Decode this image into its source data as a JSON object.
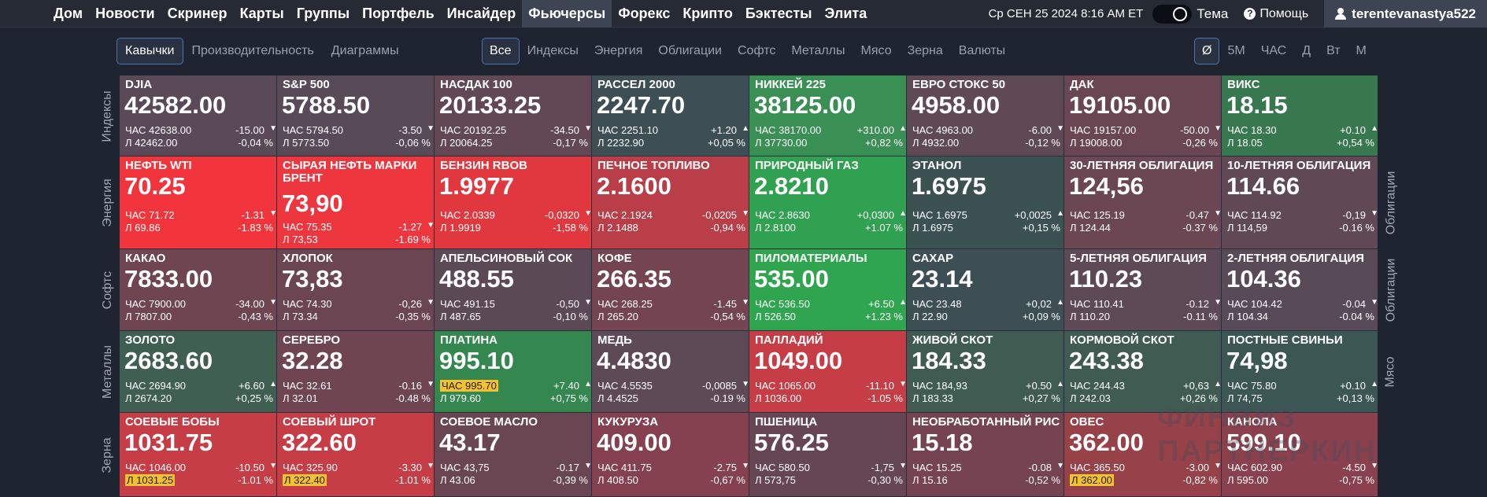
{
  "nav": {
    "items": [
      "Дом",
      "Новости",
      "Скринер",
      "Карты",
      "Группы",
      "Портфель",
      "Инсайдер",
      "Фьючерсы",
      "Форекс",
      "Крипто",
      "Бэктесты",
      "Элита"
    ],
    "active_index": 7,
    "datetime": "Ср СЕН 25 2024 8:16 AM ET",
    "theme_label": "Тема",
    "help_label": "Помощь",
    "username": "terentevanastya522"
  },
  "toolbar": {
    "views": [
      "Кавычки",
      "Производительность",
      "Диаграммы"
    ],
    "active_view": 0,
    "categories": [
      "Все",
      "Индексы",
      "Энергия",
      "Облигации",
      "Софтс",
      "Металлы",
      "Мясо",
      "Зерна",
      "Валюты"
    ],
    "active_category": 0,
    "timeframes": [
      "Ø",
      "5М",
      "ЧАС",
      "Д",
      "Вт",
      "М"
    ],
    "active_timeframe": 0
  },
  "side_labels": {
    "left": [
      "Индексы",
      "Энергия",
      "Софтс",
      "Металлы",
      "Зерна"
    ],
    "right": [
      "Облигации",
      "Облигации",
      "Мясо"
    ]
  },
  "watermark": "ФИНВИЗ ПАРТНЕРКИН",
  "tiles": [
    {
      "name": "DJIA",
      "price": "42582.00",
      "h": "ЧАС 42638.00",
      "chg": "-15.00",
      "l": "Л 42462.00",
      "pct": "-0,04 %",
      "dir": "down",
      "color": "#5a4a58"
    },
    {
      "name": "S&P 500",
      "price": "5788.50",
      "h": "ЧАС 5794.50",
      "chg": "-3.50",
      "l": "Л 5773.50",
      "pct": "-0,06 %",
      "dir": "down",
      "color": "#594a57"
    },
    {
      "name": "НАСДАК 100",
      "price": "20133.25",
      "h": "ЧАС 20192.25",
      "chg": "-34.50",
      "l": "Л 20064.25",
      "pct": "-0,17 %",
      "dir": "down",
      "color": "#614854"
    },
    {
      "name": "РАССЕЛ 2000",
      "price": "2247.70",
      "h": "ЧАС 2251.10",
      "chg": "+1.20",
      "l": "Л 2232.90",
      "pct": "+0,05 %",
      "dir": "up",
      "color": "#3d4f55"
    },
    {
      "name": "НИККЕЙ 225",
      "price": "38125.00",
      "h": "ЧАС 38170.00",
      "chg": "+310.00",
      "l": "Л 37730.00",
      "pct": "+0,82 %",
      "dir": "up",
      "color": "#3a8f55"
    },
    {
      "name": "ЕВРО СТОКС 50",
      "price": "4958.00",
      "h": "ЧАС 4963.00",
      "chg": "-6.00",
      "l": "Л 4932.00",
      "pct": "-0,12 %",
      "dir": "down",
      "color": "#5e4955"
    },
    {
      "name": "ДАК",
      "price": "19105.00",
      "h": "ЧАС 19157.00",
      "chg": "-50.00",
      "l": "Л 19008.00",
      "pct": "-0,26 %",
      "dir": "down",
      "color": "#6a4653"
    },
    {
      "name": "ВИКС",
      "price": "18.15",
      "h": "ЧАС 18.30",
      "chg": "+0.10",
      "l": "Л 18.05",
      "pct": "+0,54 %",
      "dir": "up",
      "color": "#38784e"
    },
    {
      "name": "НЕФТЬ WTI",
      "price": "70.25",
      "h": "ЧАС 71.72",
      "chg": "-1.31",
      "l": "Л 69.86",
      "pct": "-1.83 %",
      "dir": "down",
      "color": "#f2353c"
    },
    {
      "name": "СЫРАЯ НЕФТЬ МАРКИ БРЕНТ",
      "price": "73,90",
      "h": "ЧАС 75.35",
      "chg": "-1.27",
      "l": "Л 73,53",
      "pct": "-1.69 %",
      "dir": "down",
      "color": "#ee363e",
      "pct2": true
    },
    {
      "name": "БЕНЗИН RBOB",
      "price": "1.9977",
      "h": "ЧАС 2.0339",
      "chg": "-0,0320",
      "l": "Л 1.9919",
      "pct": "-1,58 %",
      "dir": "down",
      "color": "#e1383f"
    },
    {
      "name": "ПЕЧНОЕ ТОПЛИВО",
      "price": "2.1600",
      "h": "ЧАС 2.1924",
      "chg": "-0,0205",
      "l": "Л 2.1488",
      "pct": "-0,94 %",
      "dir": "down",
      "color": "#b93e47"
    },
    {
      "name": "ПРИРОДНЫЙ ГАЗ",
      "price": "2.8210",
      "h": "ЧАС 2.8630",
      "chg": "+0,0300",
      "l": "Л 2.8100",
      "pct": "+1.07 %",
      "dir": "up",
      "color": "#2fa150"
    },
    {
      "name": "ЭТАНОЛ",
      "price": "1.6975",
      "h": "ЧАС 1.6975",
      "chg": "+0,0025",
      "l": "Л 1.6975",
      "pct": "+0,15 %",
      "dir": "up",
      "color": "#3c5252"
    },
    {
      "name": "30-ЛЕТНЯЯ ОБЛИГАЦИЯ",
      "price": "124,56",
      "h": "ЧАС 125.19",
      "chg": "-0.47",
      "l": "Л 124.44",
      "pct": "-0.37 %",
      "dir": "down",
      "color": "#6b4653"
    },
    {
      "name": "10-ЛЕТНЯЯ ОБЛИГАЦИЯ",
      "price": "114.66",
      "h": "ЧАС 114.92",
      "chg": "-0,19",
      "l": "Л 114,59",
      "pct": "-0.16 %",
      "dir": "down",
      "color": "#604955"
    },
    {
      "name": "КАКАО",
      "price": "7833.00",
      "h": "ЧАС 7900.00",
      "chg": "-34.00",
      "l": "Л 7807.00",
      "pct": "-0,43 %",
      "dir": "down",
      "color": "#6f4552"
    },
    {
      "name": "ХЛОПОК",
      "price": "73,83",
      "h": "ЧАС 74.30",
      "chg": "-0,26",
      "l": "Л 73.34",
      "pct": "-0,35 %",
      "dir": "down",
      "color": "#6c4552"
    },
    {
      "name": "АПЕЛЬСИНОВЫЙ СОК",
      "price": "488.55",
      "h": "ЧАС 491.15",
      "chg": "-0,50",
      "l": "Л 487.65",
      "pct": "-0,10 %",
      "dir": "down",
      "color": "#5c4956"
    },
    {
      "name": "КОФЕ",
      "price": "266.35",
      "h": "ЧАС 268.25",
      "chg": "-1.45",
      "l": "Л 265.20",
      "pct": "-0,54 %",
      "dir": "down",
      "color": "#744451"
    },
    {
      "name": "ПИЛОМАТЕРИАЛЫ",
      "price": "535.00",
      "h": "ЧАС 536.50",
      "chg": "+6.50",
      "l": "Л 526.50",
      "pct": "+1.23 %",
      "dir": "up",
      "color": "#2fa550"
    },
    {
      "name": "САХАР",
      "price": "23.14",
      "h": "ЧАС 23.48",
      "chg": "+0,02",
      "l": "Л 22.90",
      "pct": "+0,09 %",
      "dir": "up",
      "color": "#3d4f55"
    },
    {
      "name": "5-ЛЕТНЯЯ ОБЛИГАЦИЯ",
      "price": "110.23",
      "h": "ЧАС 110.41",
      "chg": "-0.12",
      "l": "Л 110.20",
      "pct": "-0.11 %",
      "dir": "down",
      "color": "#5e4956"
    },
    {
      "name": "2-ЛЕТНЯЯ ОБЛИГАЦИЯ",
      "price": "104.36",
      "h": "ЧАС 104.42",
      "chg": "-0.04",
      "l": "Л 104.34",
      "pct": "-0.04 %",
      "dir": "down",
      "color": "#584a57"
    },
    {
      "name": "ЗОЛОТО",
      "price": "2683.60",
      "h": "ЧАС 2694.90",
      "chg": "+6.60",
      "l": "Л 2674.20",
      "pct": "+0,25 %",
      "dir": "up",
      "color": "#3f5f52"
    },
    {
      "name": "СЕРЕБРО",
      "price": "32.28",
      "h": "ЧАС 32.61",
      "chg": "-0.16",
      "l": "Л 32.01",
      "pct": "-0.48 %",
      "dir": "down",
      "color": "#6f4552"
    },
    {
      "name": "ПЛАТИНА",
      "price": "995.10",
      "h": "ЧАС 995.70",
      "chg": "+7.40",
      "l": "Л 979.60",
      "pct": "+0,75 %",
      "dir": "up",
      "color": "#34874f",
      "hl_h": true
    },
    {
      "name": "МЕДЬ",
      "price": "4.4830",
      "h": "ЧАС 4.5535",
      "chg": "-0,0085",
      "l": "Л 4.4525",
      "pct": "-0.19 %",
      "dir": "down",
      "color": "#5e4956"
    },
    {
      "name": "ПАЛЛАДИЙ",
      "price": "1049.00",
      "h": "ЧАС 1065.00",
      "chg": "-11.10",
      "l": "Л 1036.00",
      "pct": "-1.05 %",
      "dir": "down",
      "color": "#c63d45"
    },
    {
      "name": "ЖИВОЙ СКОТ",
      "price": "184.33",
      "h": "ЧАС 184,93",
      "chg": "+0.50",
      "l": "Л 183.33",
      "pct": "+0,27 %",
      "dir": "up",
      "color": "#3f5b52"
    },
    {
      "name": "КОРМОВОЙ СКОТ",
      "price": "243.38",
      "h": "ЧАС 244.43",
      "chg": "+0,63",
      "l": "Л 242.03",
      "pct": "+0,26 %",
      "dir": "up",
      "color": "#3f5b52"
    },
    {
      "name": "ПОСТНЫЕ СВИНЬИ",
      "price": "74,98",
      "h": "ЧАС 75.80",
      "chg": "+0.10",
      "l": "Л 74,75",
      "pct": "+0,13 %",
      "dir": "up",
      "color": "#3c5653"
    },
    {
      "name": "СОЕВЫЕ БОБЫ",
      "price": "1031.75",
      "h": "ЧАС 1046.00",
      "chg": "-10.50",
      "l": "Л 1031.25",
      "pct": "-1.01 %",
      "dir": "down",
      "color": "#c63d45",
      "hl_l": true
    },
    {
      "name": "СОЕВЫЙ ШРОТ",
      "price": "322.60",
      "h": "ЧАС 325.90",
      "chg": "-3.30",
      "l": "Л 322.40",
      "pct": "-1.01 %",
      "dir": "down",
      "color": "#c63d45",
      "hl_l": true
    },
    {
      "name": "СОЕВОЕ МАСЛО",
      "price": "43.17",
      "h": "ЧАС 43,75",
      "chg": "-0.17",
      "l": "Л 43.06",
      "pct": "-0,39 %",
      "dir": "down",
      "color": "#6a4653"
    },
    {
      "name": "КУКУРУЗА",
      "price": "409.00",
      "h": "ЧАС 411.75",
      "chg": "-2.75",
      "l": "Л 408.50",
      "pct": "-0,67 %",
      "dir": "down",
      "color": "#864150"
    },
    {
      "name": "ПШЕНИЦА",
      "price": "576.25",
      "h": "ЧАС 580.50",
      "chg": "-1,75",
      "l": "Л 573,75",
      "pct": "-0,30 %",
      "dir": "down",
      "color": "#674654"
    },
    {
      "name": "НЕОБРАБОТАННЫЙ РИС",
      "price": "15.18",
      "h": "ЧАС 15.25",
      "chg": "-0.08",
      "l": "Л 15.16",
      "pct": "-0,52 %",
      "dir": "down",
      "color": "#764451"
    },
    {
      "name": "ОВЕС",
      "price": "362.00",
      "h": "ЧАС 365.50",
      "chg": "-3.00",
      "l": "Л 362.00",
      "pct": "-0,82 %",
      "dir": "down",
      "color": "#974149",
      "hl_l": true
    },
    {
      "name": "КАНОЛА",
      "price": "599.10",
      "h": "ЧАС 602.90",
      "chg": "-4.50",
      "l": "Л 595.00",
      "pct": "-0,75 %",
      "dir": "down",
      "color": "#8a414d"
    }
  ]
}
